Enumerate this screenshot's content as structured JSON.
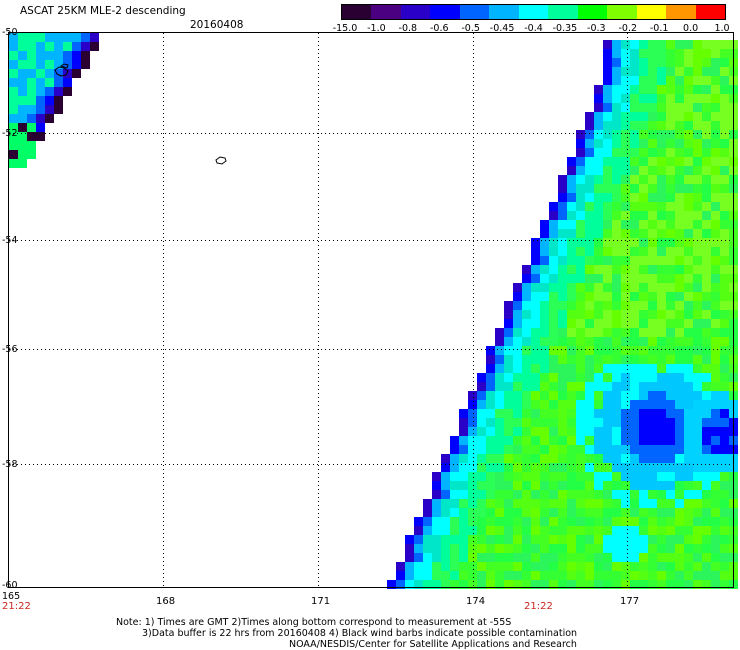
{
  "header": {
    "title": "ASCAT 25KM MLE-2 descending",
    "date": "20160408"
  },
  "colorbar": {
    "labels": [
      "-15.0",
      "-1.0",
      "-0.8",
      "-0.6",
      "-0.5",
      "-0.45",
      "-0.4",
      "-0.35",
      "-0.3",
      "-0.2",
      "-0.1",
      "0.0",
      "1.0"
    ],
    "colors": [
      "#2a0033",
      "#4a0080",
      "#2a00c8",
      "#0000ff",
      "#0064ff",
      "#00b4ff",
      "#00ffff",
      "#00ff9a",
      "#00ff00",
      "#7fff00",
      "#ffff00",
      "#ff9600",
      "#ff0000"
    ]
  },
  "map": {
    "lat_labels": [
      "-50",
      "-52",
      "-54",
      "-56",
      "-58",
      "-60"
    ],
    "lon_labels": [
      "165",
      "168",
      "171",
      "174",
      "177"
    ],
    "time_labels": [
      "21:22",
      "21:22"
    ],
    "lat_range": [
      -60,
      -50
    ],
    "lon_range": [
      165,
      179
    ],
    "grid": true
  },
  "notes": {
    "line1": "Note: 1) Times are GMT 2)Times along bottom correspond to measurement at -55S",
    "line2": "3)Data buffer is 22 hrs from 20160408 4) Black wind barbs indicate possible contamination",
    "line3": "NOAA/NESDIS/Center for Satellite Applications and Research"
  }
}
